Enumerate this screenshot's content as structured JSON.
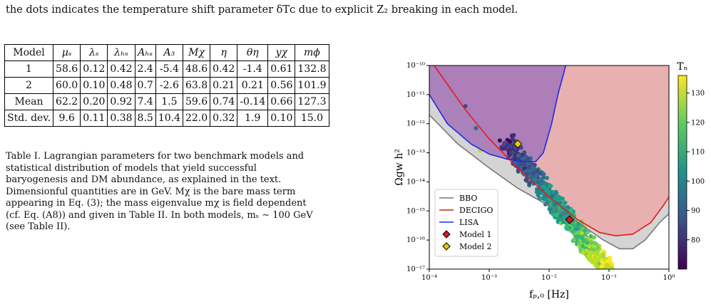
{
  "header_line": "the dots indicates the temperature shift parameter δTᴄ due to explicit Z₂ breaking in each model.",
  "table": {
    "headers": [
      "Model",
      "μₛ",
      "λₛ",
      "λₕₛ",
      "Aₕₛ",
      "A₃",
      "Mχ",
      "η",
      "θη",
      "yχ",
      "mϕ"
    ],
    "rows": [
      [
        "1",
        "58.6",
        "0.12",
        "0.42",
        "2.4",
        "-5.4",
        "48.6",
        "0.42",
        "-1.4",
        "0.61",
        "132.8"
      ],
      [
        "2",
        "60.0",
        "0.10",
        "0.48",
        "0.7",
        "-2.6",
        "63.8",
        "0.21",
        "0.21",
        "0.56",
        "101.9"
      ],
      [
        "Mean",
        "62.2",
        "0.20",
        "0.92",
        "7.4",
        "1.5",
        "59.6",
        "0.74",
        "-0.14",
        "0.66",
        "127.3"
      ],
      [
        "Std. dev.",
        "9.6",
        "0.11",
        "0.38",
        "8.5",
        "10.4",
        "22.0",
        "0.32",
        "1.9",
        "0.10",
        "15.0"
      ]
    ]
  },
  "caption": "Table I. Lagrangian parameters for two benchmark models and statistical distribution of models that yield successful baryogenesis and DM abundance, as explained in the text. Dimensionful quantities are in GeV. Mχ is the bare mass term appearing in Eq. (3); the mass eigenvalue mχ is field dependent (cf. Eq. (A8)) and given in Table II. In both models, mₛ ∼ 100 GeV (see Table II).",
  "chart_data": {
    "type": "scatter",
    "xlabel": "fₚ,₀ [Hz]",
    "ylabel": "Ωgw h²",
    "xscale": "log",
    "yscale": "log",
    "xlim": [
      0.0001,
      1
    ],
    "ylim": [
      1e-17,
      1e-10
    ],
    "xticks": [
      "10⁻⁴",
      "10⁻³",
      "10⁻²",
      "10⁻¹",
      "10⁰"
    ],
    "yticks": [
      "10⁻¹⁰",
      "10⁻¹¹",
      "10⁻¹²",
      "10⁻¹³",
      "10⁻¹⁴",
      "10⁻¹⁵",
      "10⁻¹⁶",
      "10⁻¹⁷"
    ],
    "grid": false,
    "legend_position": "bottom-left",
    "curves": [
      {
        "name": "BBO",
        "color": "#777777",
        "fill": "#d4d4d4",
        "points": [
          [
            0.0001,
            2e-12
          ],
          [
            0.0003,
            2e-13
          ],
          [
            0.001,
            3e-14
          ],
          [
            0.003,
            6e-15
          ],
          [
            0.01,
            1.5e-15
          ],
          [
            0.03,
            4e-16
          ],
          [
            0.08,
            1e-16
          ],
          [
            0.15,
            5e-17
          ],
          [
            0.25,
            5e-17
          ],
          [
            0.4,
            1e-16
          ],
          [
            0.7,
            4e-16
          ],
          [
            1,
            8e-16
          ]
        ]
      },
      {
        "name": "DECIGO",
        "color": "#e31a1c",
        "fill": "#e8b0b0",
        "points": [
          [
            0.00012,
            1e-10
          ],
          [
            0.0004,
            3e-12
          ],
          [
            0.001,
            3e-13
          ],
          [
            0.003,
            3e-14
          ],
          [
            0.01,
            3e-15
          ],
          [
            0.03,
            5e-16
          ],
          [
            0.07,
            1.8e-16
          ],
          [
            0.13,
            1.4e-16
          ],
          [
            0.25,
            1.6e-16
          ],
          [
            0.5,
            4e-16
          ],
          [
            0.8,
            1.5e-15
          ],
          [
            1,
            3e-15
          ]
        ]
      },
      {
        "name": "LISA",
        "color": "#1f2be0",
        "fill": "#a679b9",
        "points": [
          [
            0.0001,
            1e-11
          ],
          [
            0.0002,
            1e-12
          ],
          [
            0.0005,
            2e-13
          ],
          [
            0.001,
            9e-14
          ],
          [
            0.002,
            6e-14
          ],
          [
            0.004,
            5e-14
          ],
          [
            0.006,
            5e-14
          ],
          [
            0.008,
            1e-13
          ],
          [
            0.011,
            1e-12
          ],
          [
            0.014,
            1e-11
          ],
          [
            0.019,
            1e-10
          ]
        ]
      }
    ],
    "markers": [
      {
        "name": "Model 1",
        "x": 0.022,
        "y": 5e-16,
        "color": "#d7191c"
      },
      {
        "name": "Model 2",
        "x": 0.003,
        "y": 2e-13,
        "color": "#f2c500"
      }
    ],
    "colorbar": {
      "label": "Tₙ",
      "ticks": [
        80,
        90,
        100,
        110,
        120,
        130
      ],
      "range": [
        70,
        136
      ]
    }
  }
}
